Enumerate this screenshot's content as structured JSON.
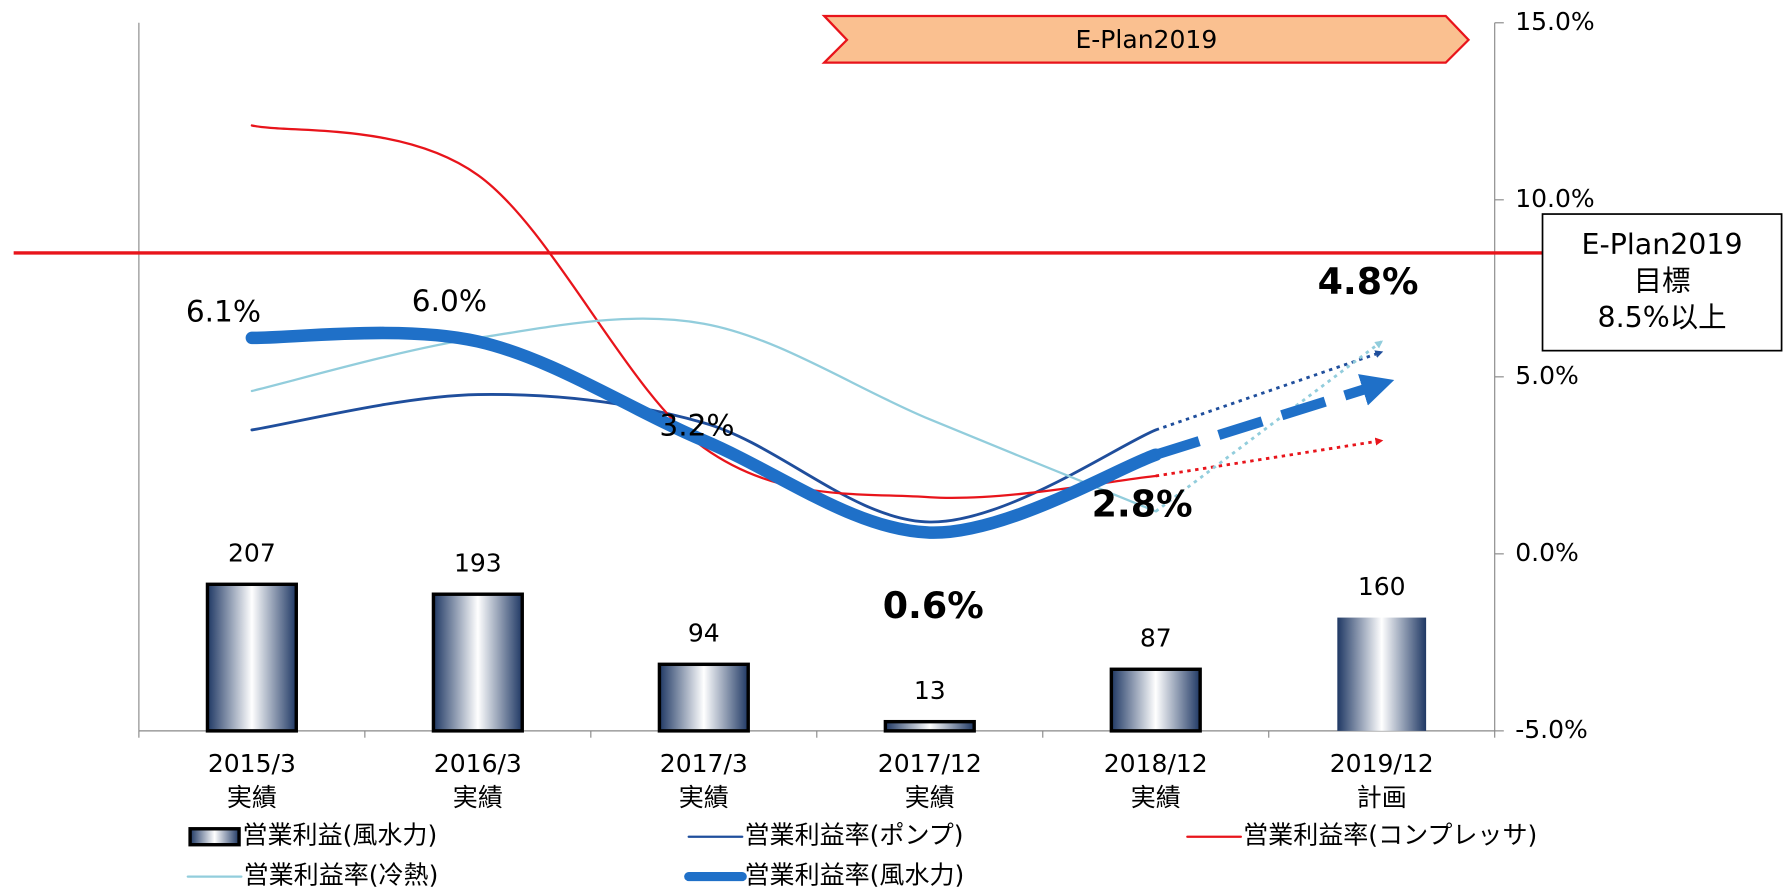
{
  "chart_data": {
    "type": "bar_line",
    "banner": "E-Plan2019",
    "categories": [
      "2015/3",
      "2016/3",
      "2017/3",
      "2017/12",
      "2018/12",
      "2019/12"
    ],
    "category_notes": [
      "実績",
      "実績",
      "実績",
      "実績",
      "実績",
      "計画"
    ],
    "ylim": [
      0,
      1000
    ],
    "y2lim": [
      -5,
      15
    ],
    "y2ticks": [
      {
        "value": -5,
        "label": "-5.0%"
      },
      {
        "value": 0,
        "label": "0.0%"
      },
      {
        "value": 5,
        "label": "5.0%"
      },
      {
        "value": 10,
        "label": "10.0%"
      },
      {
        "value": 15,
        "label": "15.0%"
      }
    ],
    "bars": {
      "name": "営業利益(風水力)",
      "color": "#1f3864",
      "values": [
        207,
        193,
        94,
        13,
        87,
        160
      ]
    },
    "series": [
      {
        "name": "営業利益率(ポンプ)",
        "color": "#1f4e9c",
        "axis": "y2",
        "values": [
          3.5,
          4.5,
          3.7,
          0.9,
          3.5,
          5.7
        ]
      },
      {
        "name": "営業利益率(コンプレッサ)",
        "color": "#e8141b",
        "axis": "y2",
        "values": [
          12.1,
          10.7,
          3.0,
          1.6,
          2.2,
          3.2
        ]
      },
      {
        "name": "営業利益率(冷熱)",
        "color": "#92cddc",
        "axis": "y2",
        "values": [
          4.6,
          6.1,
          6.5,
          3.8,
          1.2,
          6.0
        ]
      },
      {
        "name": "営業利益率(風水力)",
        "color": "#1f70c8",
        "axis": "y2",
        "values": [
          6.1,
          6.0,
          3.2,
          0.6,
          2.8,
          4.8
        ],
        "value_labels": [
          "6.1%",
          "6.0%",
          "3.2%",
          "0.6%",
          "2.8%",
          "4.8%"
        ]
      }
    ],
    "target": {
      "value": 8.5,
      "label_lines": [
        "E-Plan2019",
        "目標",
        "8.5%以上"
      ]
    }
  }
}
